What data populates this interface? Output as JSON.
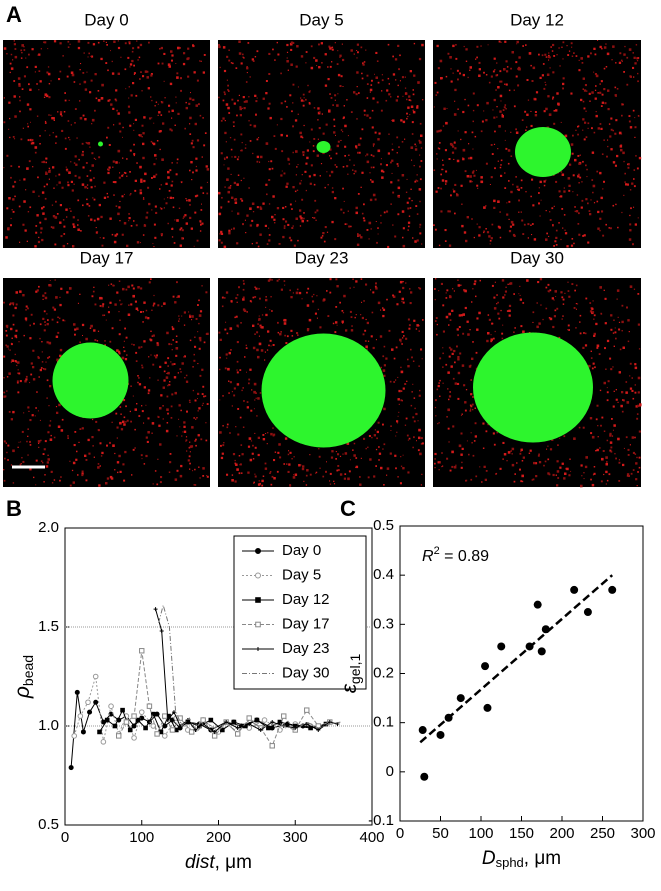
{
  "panel_labels": [
    "A",
    "B",
    "C"
  ],
  "images": {
    "titles": [
      "Day 0",
      "Day 5",
      "Day 12",
      "Day 17",
      "Day 23",
      "Day 30"
    ]
  },
  "chart_data": [
    {
      "type": "line",
      "xlabel": {
        "text": "dist",
        "unit": ", μm"
      },
      "ylabel": {
        "text": "ρ",
        "sub": "bead"
      },
      "xlim": [
        0,
        400
      ],
      "xticks": [
        0,
        100,
        200,
        300,
        400
      ],
      "ylim": [
        0.5,
        2.0
      ],
      "yticks": [
        {
          "value": 0.5,
          "label": "0.5"
        },
        {
          "value": 1.0,
          "label": "1.0"
        },
        {
          "value": 1.5,
          "label": "1.5"
        },
        {
          "value": 2.0,
          "label": "2.0"
        }
      ],
      "hlines": [
        1.0,
        1.5
      ],
      "legend": "upper right",
      "series": [
        {
          "name": "Day 0",
          "color": "#000000",
          "marker": "circle",
          "dash": "none",
          "x": [
            8,
            16,
            24,
            32,
            40,
            50,
            60,
            70,
            80,
            90,
            100,
            110,
            120,
            130,
            140,
            150,
            160,
            175,
            190,
            210,
            230,
            250,
            270,
            290,
            310,
            330,
            345
          ],
          "values": [
            0.79,
            1.17,
            0.97,
            1.07,
            1.12,
            1.02,
            1.06,
            1.03,
            1.05,
            1.0,
            1.04,
            1.02,
            1.06,
            1.0,
            1.03,
            0.99,
            1.02,
            1.01,
            0.98,
            1.02,
            1.0,
            1.03,
            0.99,
            1.01,
            1.0,
            0.99,
            1.02
          ]
        },
        {
          "name": "Day 5",
          "color": "#999999",
          "marker": "opencircle",
          "dash": "2,2",
          "x": [
            12,
            20,
            30,
            40,
            50,
            60,
            70,
            80,
            90,
            100,
            115,
            130,
            145,
            160,
            180,
            200,
            220,
            240,
            260,
            280,
            300,
            320
          ],
          "values": [
            0.95,
            1.05,
            1.12,
            1.25,
            0.92,
            1.1,
            0.96,
            1.05,
            0.94,
            1.07,
            1.0,
            0.95,
            1.04,
            0.98,
            1.03,
            0.97,
            1.02,
            0.99,
            1.03,
            0.98,
            1.01,
            1.0
          ]
        },
        {
          "name": "Day 12",
          "color": "#000000",
          "marker": "square",
          "dash": "none",
          "x": [
            45,
            55,
            65,
            75,
            85,
            95,
            105,
            115,
            125,
            135,
            145,
            160,
            175,
            190,
            205,
            220,
            235,
            250,
            265,
            280,
            300,
            320,
            340
          ],
          "values": [
            0.97,
            1.03,
            1.0,
            1.08,
            0.98,
            1.03,
            0.99,
            1.06,
            0.97,
            1.05,
            0.98,
            1.02,
            1.0,
            1.03,
            0.98,
            1.02,
            1.0,
            1.03,
            0.99,
            1.02,
            1.0,
            0.99,
            1.01
          ]
        },
        {
          "name": "Day 17",
          "color": "#888888",
          "marker": "opensquare",
          "dash": "4,2",
          "x": [
            70,
            80,
            90,
            100,
            110,
            120,
            130,
            140,
            150,
            165,
            180,
            195,
            210,
            225,
            240,
            255,
            270,
            285,
            300,
            315,
            330,
            345
          ],
          "values": [
            0.95,
            1.02,
            1.05,
            1.38,
            1.1,
            0.96,
            1.05,
            0.98,
            1.04,
            0.97,
            1.03,
            0.95,
            1.02,
            0.96,
            1.04,
            0.99,
            0.9,
            1.05,
            0.98,
            1.08,
            1.0,
            1.02
          ]
        },
        {
          "name": "Day 23",
          "color": "#000000",
          "marker": "plus",
          "dash": "none",
          "x": [
            118,
            126,
            134,
            142,
            150,
            160,
            170,
            180,
            195,
            210,
            225,
            240,
            255,
            270,
            285,
            300,
            315,
            330,
            345,
            355
          ],
          "values": [
            1.59,
            1.48,
            1.03,
            1.07,
            1.0,
            1.03,
            0.98,
            1.01,
            0.97,
            1.02,
            0.99,
            1.01,
            0.98,
            1.02,
            1.0,
            0.99,
            1.01,
            0.98,
            1.02,
            1.01
          ]
        },
        {
          "name": "Day 30",
          "color": "#777777",
          "marker": "none",
          "dash": "5,2,1,2",
          "x": [
            122,
            128,
            136,
            144,
            152,
            162,
            172,
            182,
            195,
            210,
            225,
            240,
            255,
            270,
            285,
            300,
            315,
            330,
            345,
            360
          ],
          "values": [
            1.52,
            1.61,
            1.5,
            1.08,
            1.0,
            1.04,
            0.97,
            1.02,
            0.99,
            1.01,
            0.97,
            1.03,
            0.99,
            1.01,
            1.0,
            0.98,
            1.02,
            0.99,
            1.01,
            1.02
          ]
        }
      ]
    },
    {
      "type": "scatter",
      "annotation": {
        "text": "R",
        "sup": "2",
        "rest": " = 0.89"
      },
      "xlabel": {
        "text": "D",
        "sub": "sphd",
        "unit": ", μm"
      },
      "ylabel": {
        "text": "ε",
        "sub": "gel,1"
      },
      "xlim": [
        0,
        300
      ],
      "xticks": [
        0,
        50,
        100,
        150,
        200,
        250,
        300
      ],
      "ylim": [
        -0.1,
        0.5
      ],
      "yticks": [
        -0.1,
        0,
        0.1,
        0.2,
        0.3,
        0.4,
        0.5
      ],
      "color": "#000000",
      "x": [
        28,
        30,
        50,
        60,
        75,
        105,
        108,
        125,
        160,
        170,
        175,
        180,
        215,
        232,
        262
      ],
      "values": [
        0.085,
        -0.01,
        0.075,
        0.11,
        0.15,
        0.215,
        0.13,
        0.255,
        0.255,
        0.34,
        0.245,
        0.29,
        0.37,
        0.325,
        0.37
      ],
      "fit": {
        "x": [
          25,
          262
        ],
        "y": [
          0.06,
          0.4
        ]
      }
    }
  ]
}
